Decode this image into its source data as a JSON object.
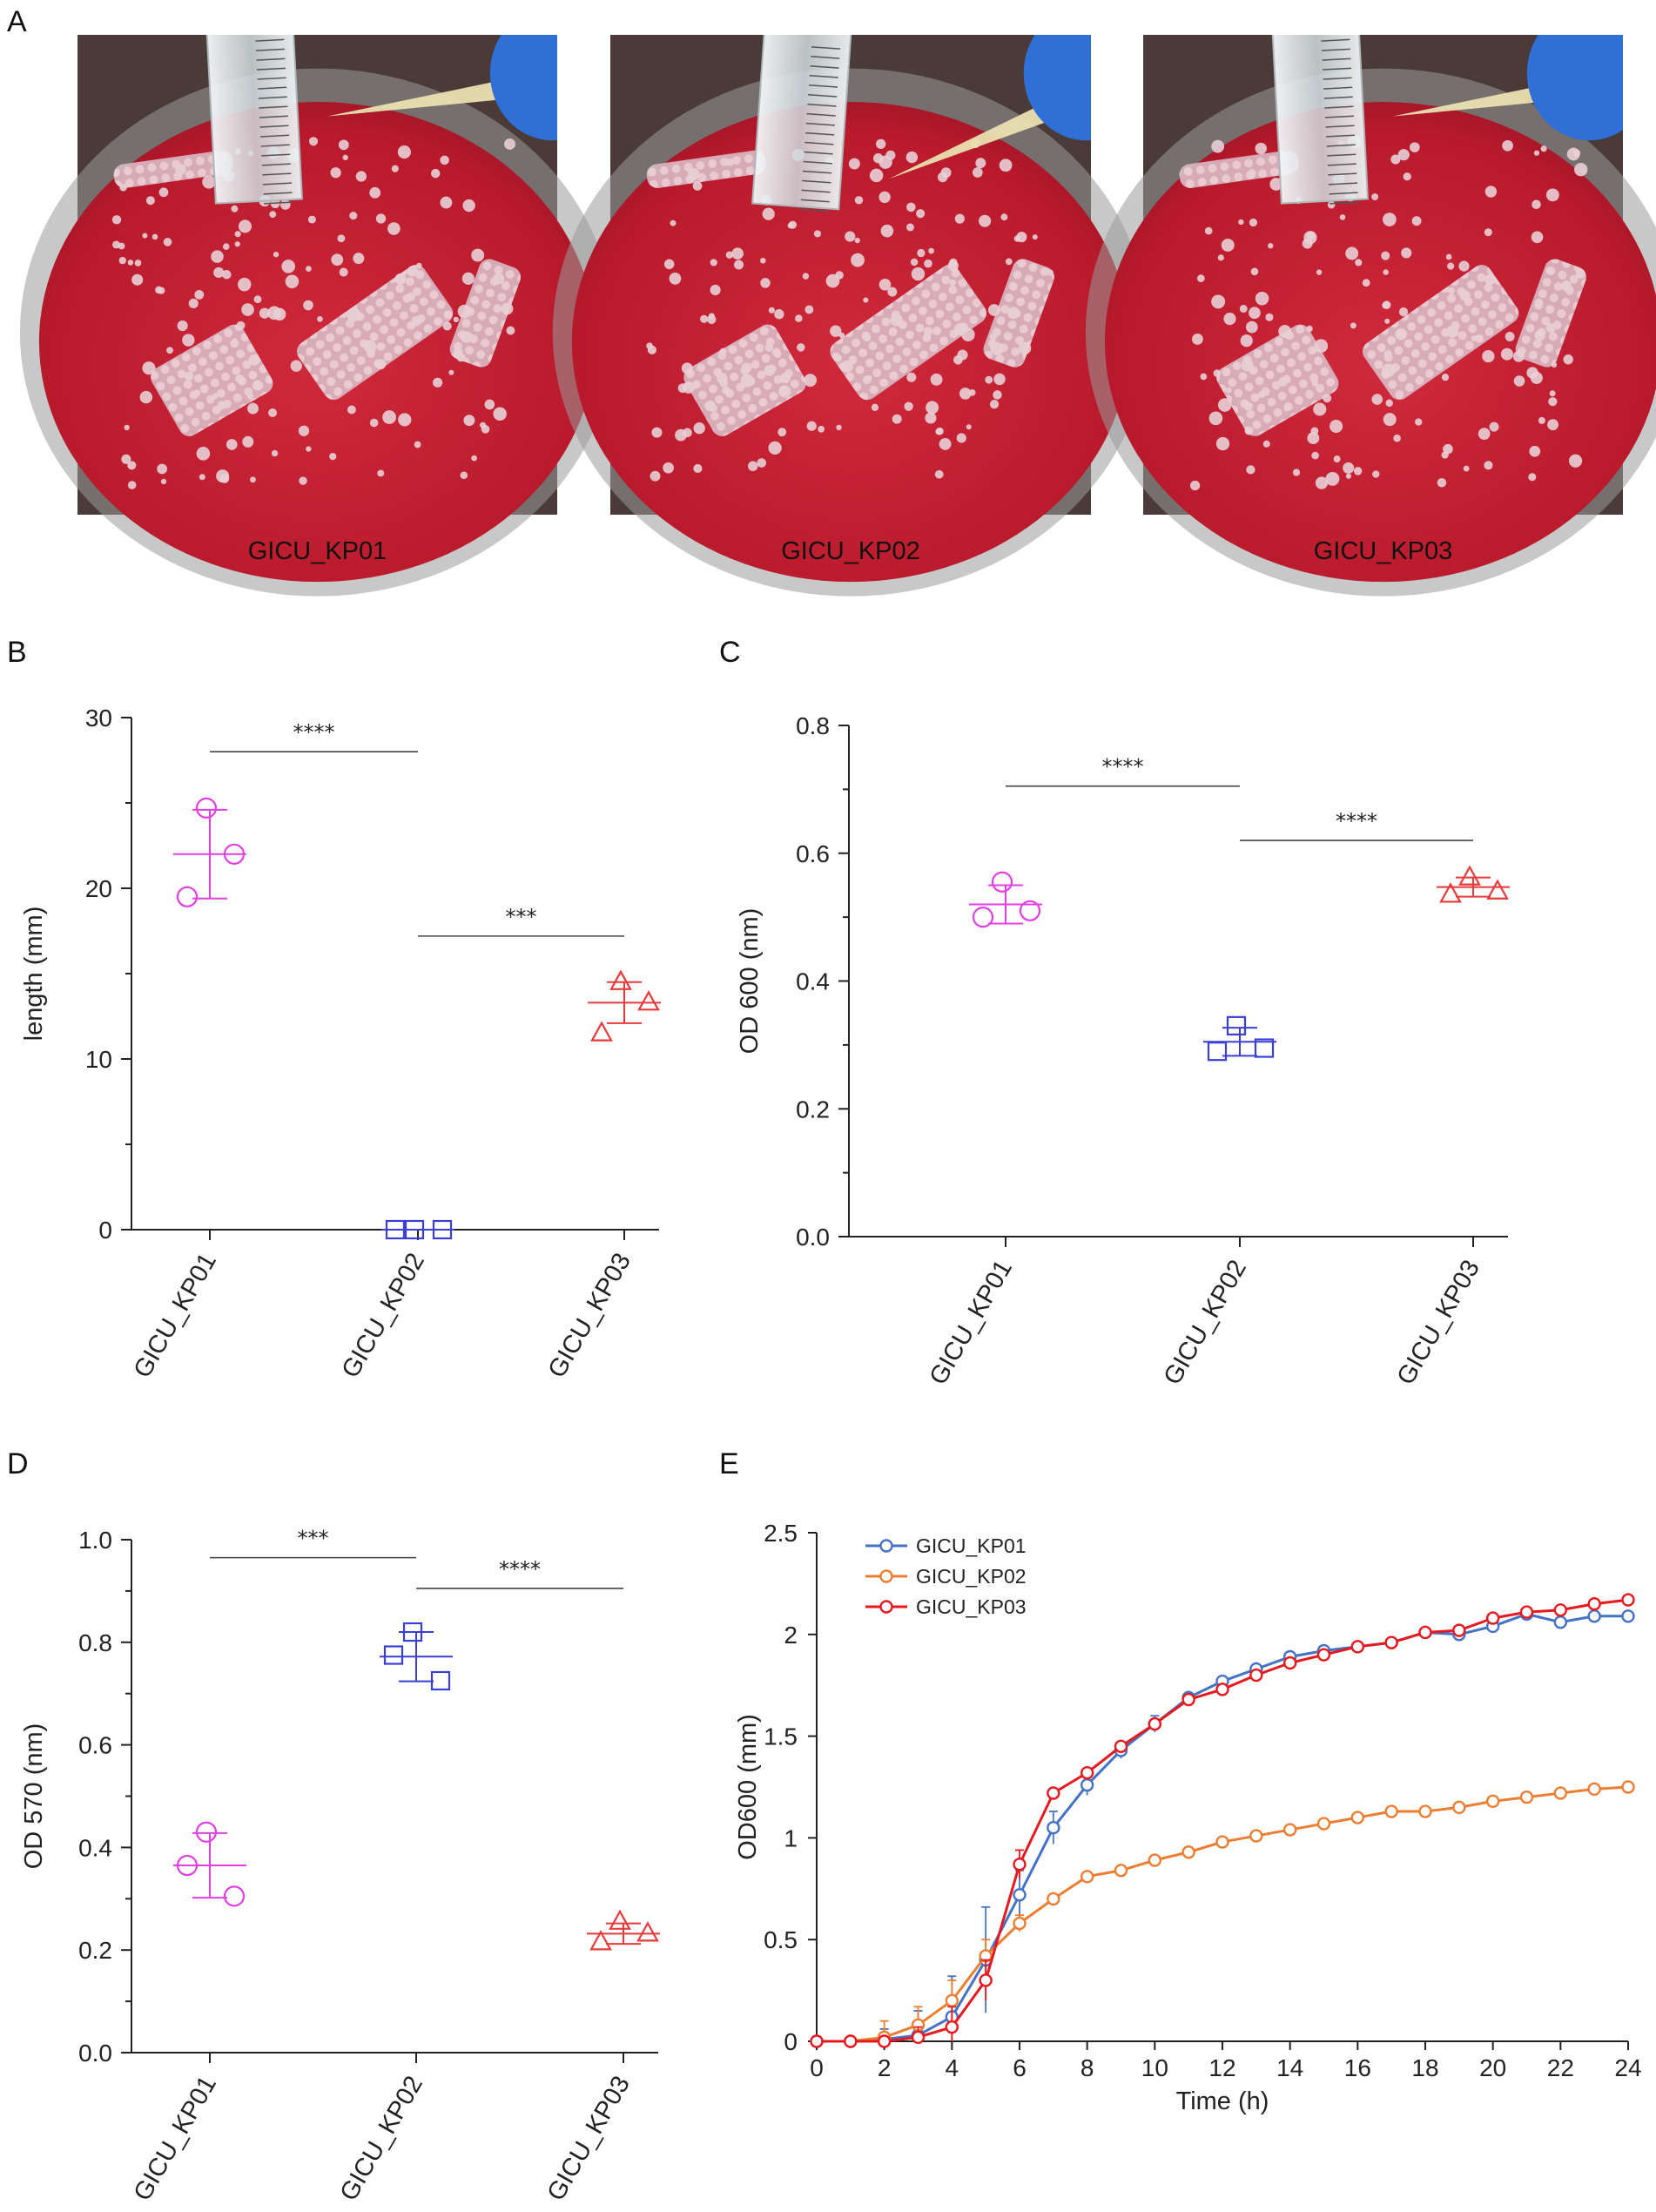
{
  "panel_a": {
    "letter": "A",
    "photos": [
      {
        "label": "GICU_KP01"
      },
      {
        "label": "GICU_KP02"
      },
      {
        "label": "GICU_KP03"
      }
    ],
    "colors": {
      "agar": "#c41e32",
      "agar_dark": "#8e1424",
      "colony": "#e8cfd6",
      "ruler": "#dfe6ea",
      "tip": "#e9dfb0",
      "glove": "#2f6fd6"
    }
  },
  "chart_data": [
    {
      "id": "B",
      "type": "scatter",
      "panel_letter": "B",
      "ylabel": "length (mm)",
      "ylim": [
        0,
        30
      ],
      "yticks": [
        0,
        10,
        20,
        30
      ],
      "yticklabels": [
        "0",
        "10",
        "20",
        "30"
      ],
      "categories": [
        "GICU_KP01",
        "GICU_KP02",
        "GICU_KP03"
      ],
      "series": [
        {
          "name": "GICU_KP01",
          "color": "#e23fe3",
          "marker": "circle",
          "points": [
            24.7,
            19.5,
            22.0
          ],
          "mean": 22.0,
          "sd": 2.6
        },
        {
          "name": "GICU_KP02",
          "color": "#3b3fd6",
          "marker": "square",
          "points": [
            0,
            0,
            0
          ],
          "mean": 0,
          "sd": 0
        },
        {
          "name": "GICU_KP03",
          "color": "#e83a3a",
          "marker": "triangle",
          "points": [
            14.5,
            11.5,
            13.3
          ],
          "mean": 13.3,
          "sd": 1.2
        }
      ],
      "significance": [
        {
          "from": 0,
          "to": 1,
          "y": 28.0,
          "label": "****"
        },
        {
          "from": 1,
          "to": 2,
          "y": 17.2,
          "label": "***"
        }
      ]
    },
    {
      "id": "C",
      "type": "scatter",
      "panel_letter": "C",
      "ylabel": "OD 600 (nm)",
      "ylim": [
        0,
        0.8
      ],
      "yticks": [
        0,
        0.2,
        0.4,
        0.6,
        0.8
      ],
      "yticklabels": [
        "0.0",
        "0.2",
        "0.4",
        "0.6",
        "0.8"
      ],
      "categories": [
        "GICU_KP01",
        "GICU_KP02",
        "GICU_KP03"
      ],
      "series": [
        {
          "name": "GICU_KP01",
          "color": "#e23fe3",
          "marker": "circle",
          "points": [
            0.555,
            0.5,
            0.51
          ],
          "mean": 0.52,
          "sd": 0.03
        },
        {
          "name": "GICU_KP02",
          "color": "#3b3fd6",
          "marker": "square",
          "points": [
            0.33,
            0.29,
            0.295
          ],
          "mean": 0.305,
          "sd": 0.022
        },
        {
          "name": "GICU_KP03",
          "color": "#e83a3a",
          "marker": "triangle",
          "points": [
            0.562,
            0.535,
            0.54
          ],
          "mean": 0.547,
          "sd": 0.015
        }
      ],
      "significance": [
        {
          "from": 0,
          "to": 1,
          "y": 0.705,
          "label": "****"
        },
        {
          "from": 1,
          "to": 2,
          "y": 0.62,
          "label": "****"
        }
      ]
    },
    {
      "id": "D",
      "type": "scatter",
      "panel_letter": "D",
      "ylabel": "OD 570 (nm)",
      "ylim": [
        0,
        1.0
      ],
      "yticks": [
        0,
        0.2,
        0.4,
        0.6,
        0.8,
        1.0
      ],
      "yticklabels": [
        "0.0",
        "0.2",
        "0.4",
        "0.6",
        "0.8",
        "1.0"
      ],
      "categories": [
        "GICU_KP01",
        "GICU_KP02",
        "GICU_KP03"
      ],
      "series": [
        {
          "name": "GICU_KP01",
          "color": "#e23fe3",
          "marker": "circle",
          "points": [
            0.43,
            0.365,
            0.305
          ],
          "mean": 0.365,
          "sd": 0.063
        },
        {
          "name": "GICU_KP02",
          "color": "#3b3fd6",
          "marker": "square",
          "points": [
            0.82,
            0.775,
            0.725
          ],
          "mean": 0.772,
          "sd": 0.048
        },
        {
          "name": "GICU_KP03",
          "color": "#e83a3a",
          "marker": "triangle",
          "points": [
            0.255,
            0.215,
            0.232
          ],
          "mean": 0.232,
          "sd": 0.02
        }
      ],
      "significance": [
        {
          "from": 0,
          "to": 1,
          "y": 0.965,
          "label": "***"
        },
        {
          "from": 1,
          "to": 2,
          "y": 0.905,
          "label": "****"
        }
      ]
    },
    {
      "id": "E",
      "type": "line",
      "panel_letter": "E",
      "xlabel": "Time (h)",
      "ylabel": "OD600 (mm)",
      "xlim": [
        0,
        24
      ],
      "ylim": [
        0,
        2.5
      ],
      "xticks": [
        0,
        2,
        4,
        6,
        8,
        10,
        12,
        14,
        16,
        18,
        20,
        22,
        24
      ],
      "xticklabels": [
        "0",
        "2",
        "4",
        "6",
        "8",
        "10",
        "12",
        "14",
        "16",
        "18",
        "20",
        "22",
        "24"
      ],
      "yticks": [
        0,
        0.5,
        1,
        1.5,
        2,
        2.5
      ],
      "yticklabels": [
        "0",
        "0.5",
        "1",
        "1.5",
        "2",
        "2.5"
      ],
      "x": [
        0,
        1,
        2,
        3,
        4,
        5,
        6,
        7,
        8,
        9,
        10,
        11,
        12,
        13,
        14,
        15,
        16,
        17,
        18,
        19,
        20,
        21,
        22,
        23,
        24
      ],
      "series": [
        {
          "name": "GICU_KP01",
          "color": "#4472c4",
          "values": [
            0,
            0,
            0.01,
            0.03,
            0.12,
            0.4,
            0.72,
            1.05,
            1.26,
            1.43,
            1.56,
            1.69,
            1.77,
            1.83,
            1.89,
            1.92,
            1.94,
            1.96,
            2.01,
            2.0,
            2.04,
            2.1,
            2.06,
            2.09,
            2.09
          ],
          "errors": [
            0,
            0.02,
            0.05,
            0.12,
            0.2,
            0.26,
            0.12,
            0.08,
            0.05,
            0.04,
            0.04,
            0.02,
            0.02,
            0.02,
            0.02,
            0.02,
            0.02,
            0.02,
            0.02,
            0.02,
            0.02,
            0.02,
            0.02,
            0.02,
            0.02
          ]
        },
        {
          "name": "GICU_KP02",
          "color": "#ed7d31",
          "values": [
            0,
            0,
            0.02,
            0.08,
            0.2,
            0.42,
            0.58,
            0.7,
            0.81,
            0.84,
            0.89,
            0.93,
            0.98,
            1.01,
            1.04,
            1.07,
            1.1,
            1.13,
            1.13,
            1.15,
            1.18,
            1.2,
            1.22,
            1.24,
            1.25
          ],
          "errors": [
            0,
            0.02,
            0.08,
            0.09,
            0.1,
            0.08,
            0.04,
            0.03,
            0.02,
            0.02,
            0.02,
            0.02,
            0.02,
            0.02,
            0.02,
            0.02,
            0.02,
            0.02,
            0.02,
            0.02,
            0.02,
            0.02,
            0.02,
            0.02,
            0.02
          ]
        },
        {
          "name": "GICU_KP03",
          "color": "#e8181f",
          "values": [
            0,
            0,
            0,
            0.02,
            0.07,
            0.3,
            0.87,
            1.22,
            1.32,
            1.45,
            1.56,
            1.68,
            1.73,
            1.8,
            1.86,
            1.9,
            1.94,
            1.96,
            2.01,
            2.02,
            2.08,
            2.11,
            2.12,
            2.15,
            2.17
          ],
          "errors": [
            0,
            0.02,
            0.03,
            0.05,
            0.1,
            0.1,
            0.07,
            0.03,
            0.03,
            0.03,
            0.03,
            0.02,
            0.02,
            0.02,
            0.02,
            0.02,
            0.02,
            0.02,
            0.02,
            0.02,
            0.02,
            0.02,
            0.02,
            0.02,
            0.02
          ]
        }
      ],
      "legend": [
        "GICU_KP01",
        "GICU_KP02",
        "GICU_KP03"
      ],
      "legend_position": "top-left"
    }
  ]
}
